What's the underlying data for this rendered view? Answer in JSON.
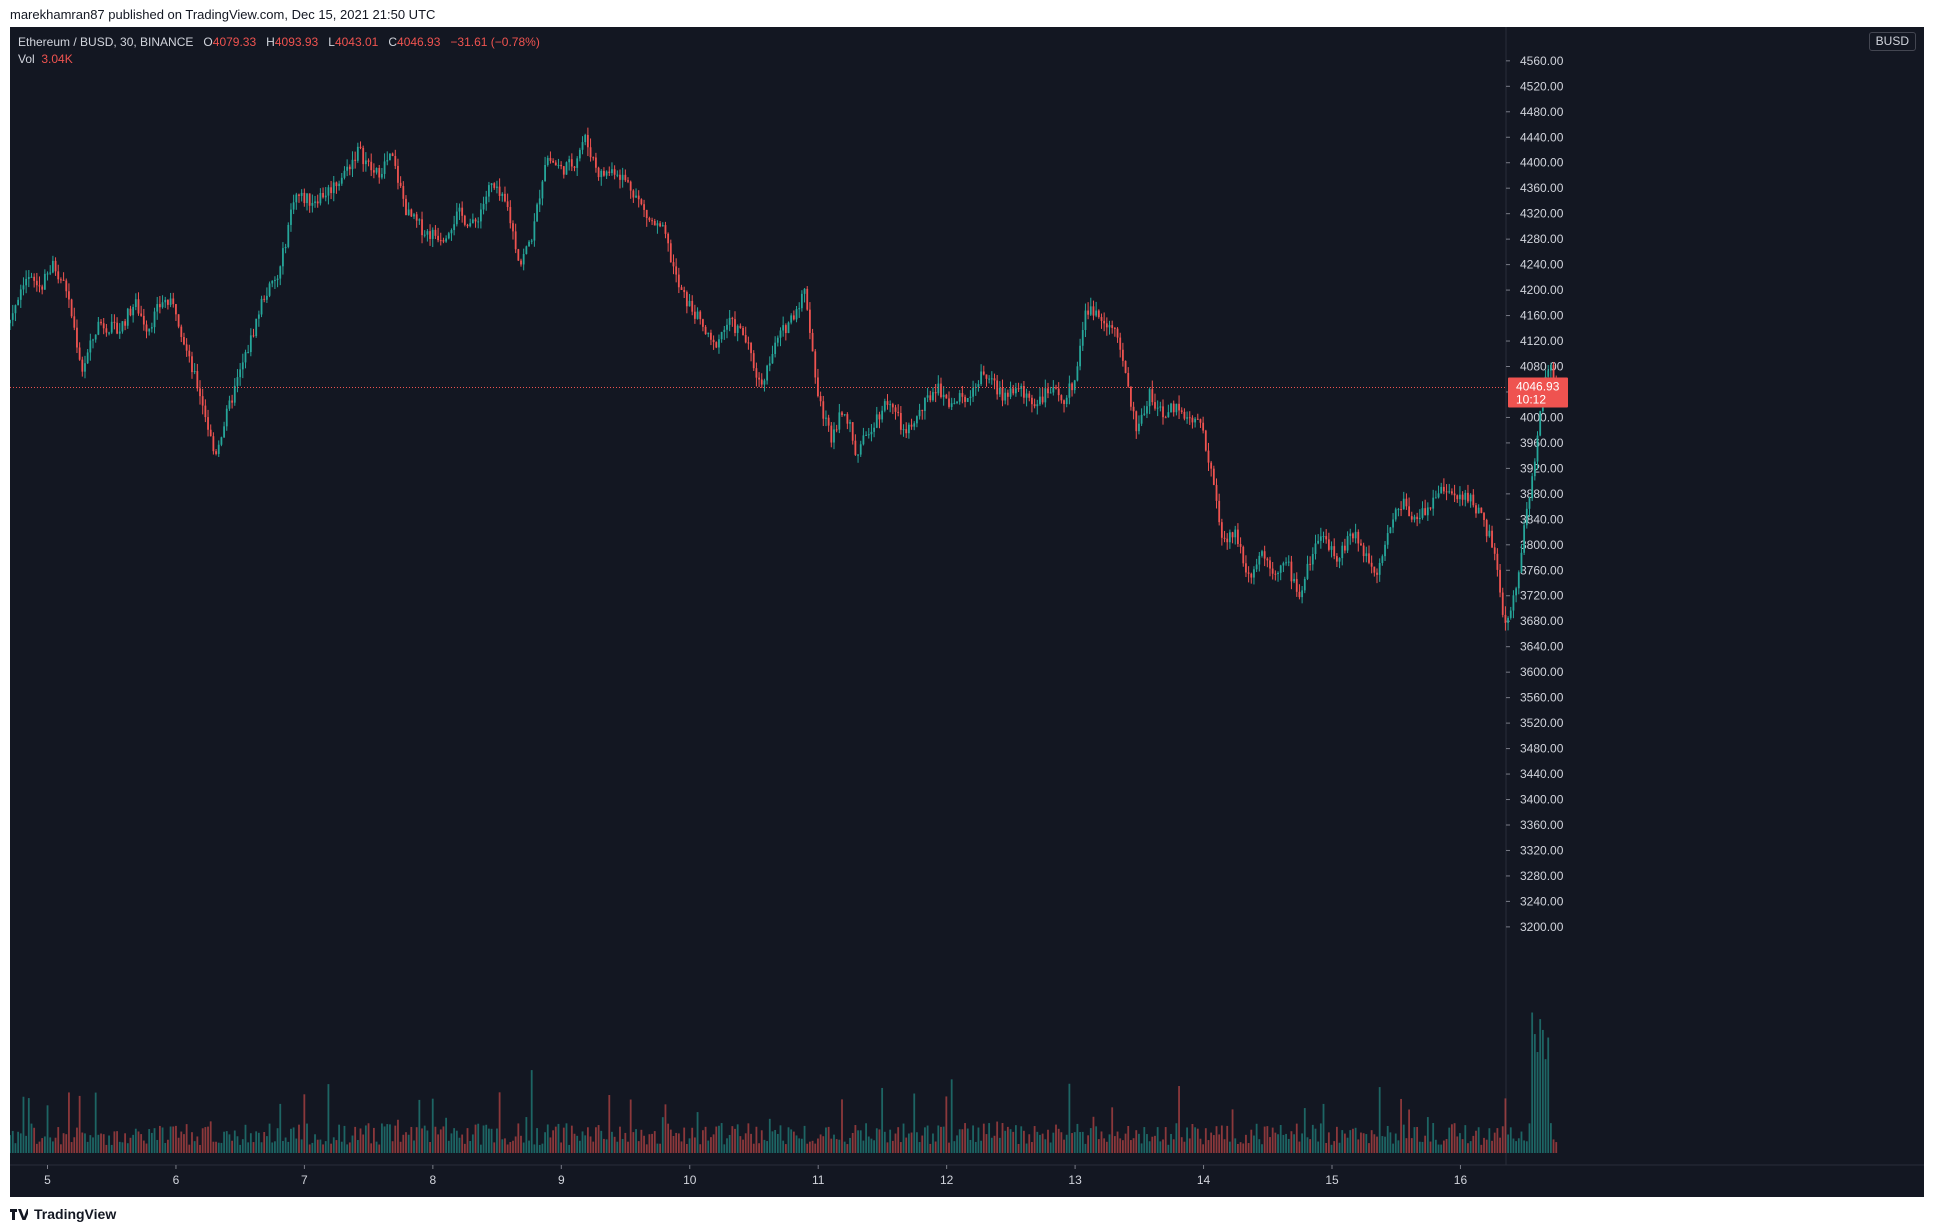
{
  "header": {
    "publish_line": "marekhamran87 published on TradingView.com, Dec 15, 2021 21:50 UTC"
  },
  "legend": {
    "symbol": "Ethereum / BUSD, 30, BINANCE",
    "o_label": "O",
    "o_value": "4079.33",
    "h_label": "H",
    "h_value": "4093.93",
    "l_label": "L",
    "l_value": "4043.01",
    "c_label": "C",
    "c_value": "4046.93",
    "change": "−31.61 (−0.78%)",
    "vol_label": "Vol",
    "vol_value": "3.04K"
  },
  "currency_badge": "BUSD",
  "price_label": {
    "price": "4046.93",
    "countdown": "10:12"
  },
  "footer": {
    "logo_text": "TradingView"
  },
  "colors": {
    "background": "#131722",
    "up": "#26a69a",
    "down": "#ef5350",
    "axis_text": "#d1d4dc"
  },
  "icons": {
    "tv_logo": "tradingview-logo-icon"
  },
  "chart_data": {
    "type": "candlestick",
    "title": "Ethereum / BUSD, 30, BINANCE",
    "interval": "30",
    "exchange": "BINANCE",
    "y_ticks": [
      "3200.00",
      "3240.00",
      "3280.00",
      "3320.00",
      "3360.00",
      "3400.00",
      "3440.00",
      "3480.00",
      "3520.00",
      "3560.00",
      "3600.00",
      "3640.00",
      "3680.00",
      "3720.00",
      "3760.00",
      "3800.00",
      "3840.00",
      "3880.00",
      "3920.00",
      "3960.00",
      "4000.00",
      "4040.00",
      "4080.00",
      "4120.00",
      "4160.00",
      "4200.00",
      "4240.00",
      "4280.00",
      "4320.00",
      "4360.00",
      "4400.00",
      "4440.00",
      "4480.00",
      "4520.00",
      "4560.00"
    ],
    "ylim": [
      3180,
      4590
    ],
    "x_ticks": [
      "5",
      "6",
      "7",
      "8",
      "9",
      "10",
      "11",
      "12",
      "13",
      "14",
      "15",
      "16"
    ],
    "last_price": 4046.93,
    "grid": false,
    "price_anchors_days": [
      [
        4.38,
        4010
      ],
      [
        4.5,
        4115
      ],
      [
        4.6,
        4110
      ],
      [
        4.7,
        4150
      ],
      [
        4.82,
        4220
      ],
      [
        4.95,
        4205
      ],
      [
        5.05,
        4240
      ],
      [
        5.15,
        4200
      ],
      [
        5.27,
        4075
      ],
      [
        5.4,
        4150
      ],
      [
        5.55,
        4135
      ],
      [
        5.68,
        4180
      ],
      [
        5.78,
        4140
      ],
      [
        5.9,
        4185
      ],
      [
        6.0,
        4170
      ],
      [
        6.1,
        4090
      ],
      [
        6.2,
        4030
      ],
      [
        6.3,
        3940
      ],
      [
        6.45,
        4040
      ],
      [
        6.58,
        4120
      ],
      [
        6.68,
        4190
      ],
      [
        6.8,
        4220
      ],
      [
        6.92,
        4350
      ],
      [
        7.05,
        4340
      ],
      [
        7.18,
        4355
      ],
      [
        7.3,
        4380
      ],
      [
        7.42,
        4420
      ],
      [
        7.55,
        4380
      ],
      [
        7.68,
        4410
      ],
      [
        7.8,
        4320
      ],
      [
        7.95,
        4290
      ],
      [
        8.08,
        4285
      ],
      [
        8.2,
        4320
      ],
      [
        8.32,
        4300
      ],
      [
        8.45,
        4365
      ],
      [
        8.58,
        4330
      ],
      [
        8.68,
        4240
      ],
      [
        8.78,
        4290
      ],
      [
        8.88,
        4410
      ],
      [
        9.0,
        4390
      ],
      [
        9.1,
        4400
      ],
      [
        9.18,
        4440
      ],
      [
        9.3,
        4380
      ],
      [
        9.42,
        4390
      ],
      [
        9.55,
        4360
      ],
      [
        9.68,
        4310
      ],
      [
        9.8,
        4290
      ],
      [
        9.92,
        4200
      ],
      [
        10.05,
        4160
      ],
      [
        10.18,
        4110
      ],
      [
        10.3,
        4150
      ],
      [
        10.42,
        4130
      ],
      [
        10.55,
        4050
      ],
      [
        10.68,
        4120
      ],
      [
        10.8,
        4160
      ],
      [
        10.9,
        4200
      ],
      [
        11.0,
        4030
      ],
      [
        11.1,
        3970
      ],
      [
        11.2,
        4020
      ],
      [
        11.3,
        3940
      ],
      [
        11.42,
        3990
      ],
      [
        11.55,
        4030
      ],
      [
        11.68,
        3970
      ],
      [
        11.8,
        4010
      ],
      [
        11.92,
        4050
      ],
      [
        12.05,
        4020
      ],
      [
        12.18,
        4040
      ],
      [
        12.3,
        4070
      ],
      [
        12.42,
        4035
      ],
      [
        12.55,
        4045
      ],
      [
        12.68,
        4025
      ],
      [
        12.8,
        4040
      ],
      [
        12.92,
        4030
      ],
      [
        13.0,
        4060
      ],
      [
        13.08,
        4170
      ],
      [
        13.2,
        4160
      ],
      [
        13.3,
        4140
      ],
      [
        13.38,
        4080
      ],
      [
        13.48,
        3975
      ],
      [
        13.58,
        4040
      ],
      [
        13.68,
        4000
      ],
      [
        13.78,
        4020
      ],
      [
        13.88,
        4000
      ],
      [
        13.98,
        3990
      ],
      [
        14.05,
        3930
      ],
      [
        14.15,
        3800
      ],
      [
        14.25,
        3820
      ],
      [
        14.35,
        3750
      ],
      [
        14.45,
        3790
      ],
      [
        14.55,
        3760
      ],
      [
        14.65,
        3770
      ],
      [
        14.75,
        3720
      ],
      [
        14.85,
        3790
      ],
      [
        14.95,
        3810
      ],
      [
        15.05,
        3780
      ],
      [
        15.15,
        3820
      ],
      [
        15.25,
        3790
      ],
      [
        15.35,
        3760
      ],
      [
        15.45,
        3830
      ],
      [
        15.55,
        3870
      ],
      [
        15.65,
        3840
      ],
      [
        15.75,
        3860
      ],
      [
        15.85,
        3890
      ],
      [
        15.95,
        3870
      ],
      [
        16.05,
        3880
      ],
      [
        16.15,
        3850
      ],
      [
        16.25,
        3800
      ],
      [
        16.35,
        3670
      ],
      [
        16.42,
        3720
      ],
      [
        16.5,
        3830
      ],
      [
        16.58,
        3940
      ],
      [
        16.64,
        4040
      ],
      [
        16.7,
        4080
      ],
      [
        16.75,
        4047
      ]
    ],
    "volume_note": "Volume histogram at bottom; spike near the end of Dec 15 rally"
  }
}
